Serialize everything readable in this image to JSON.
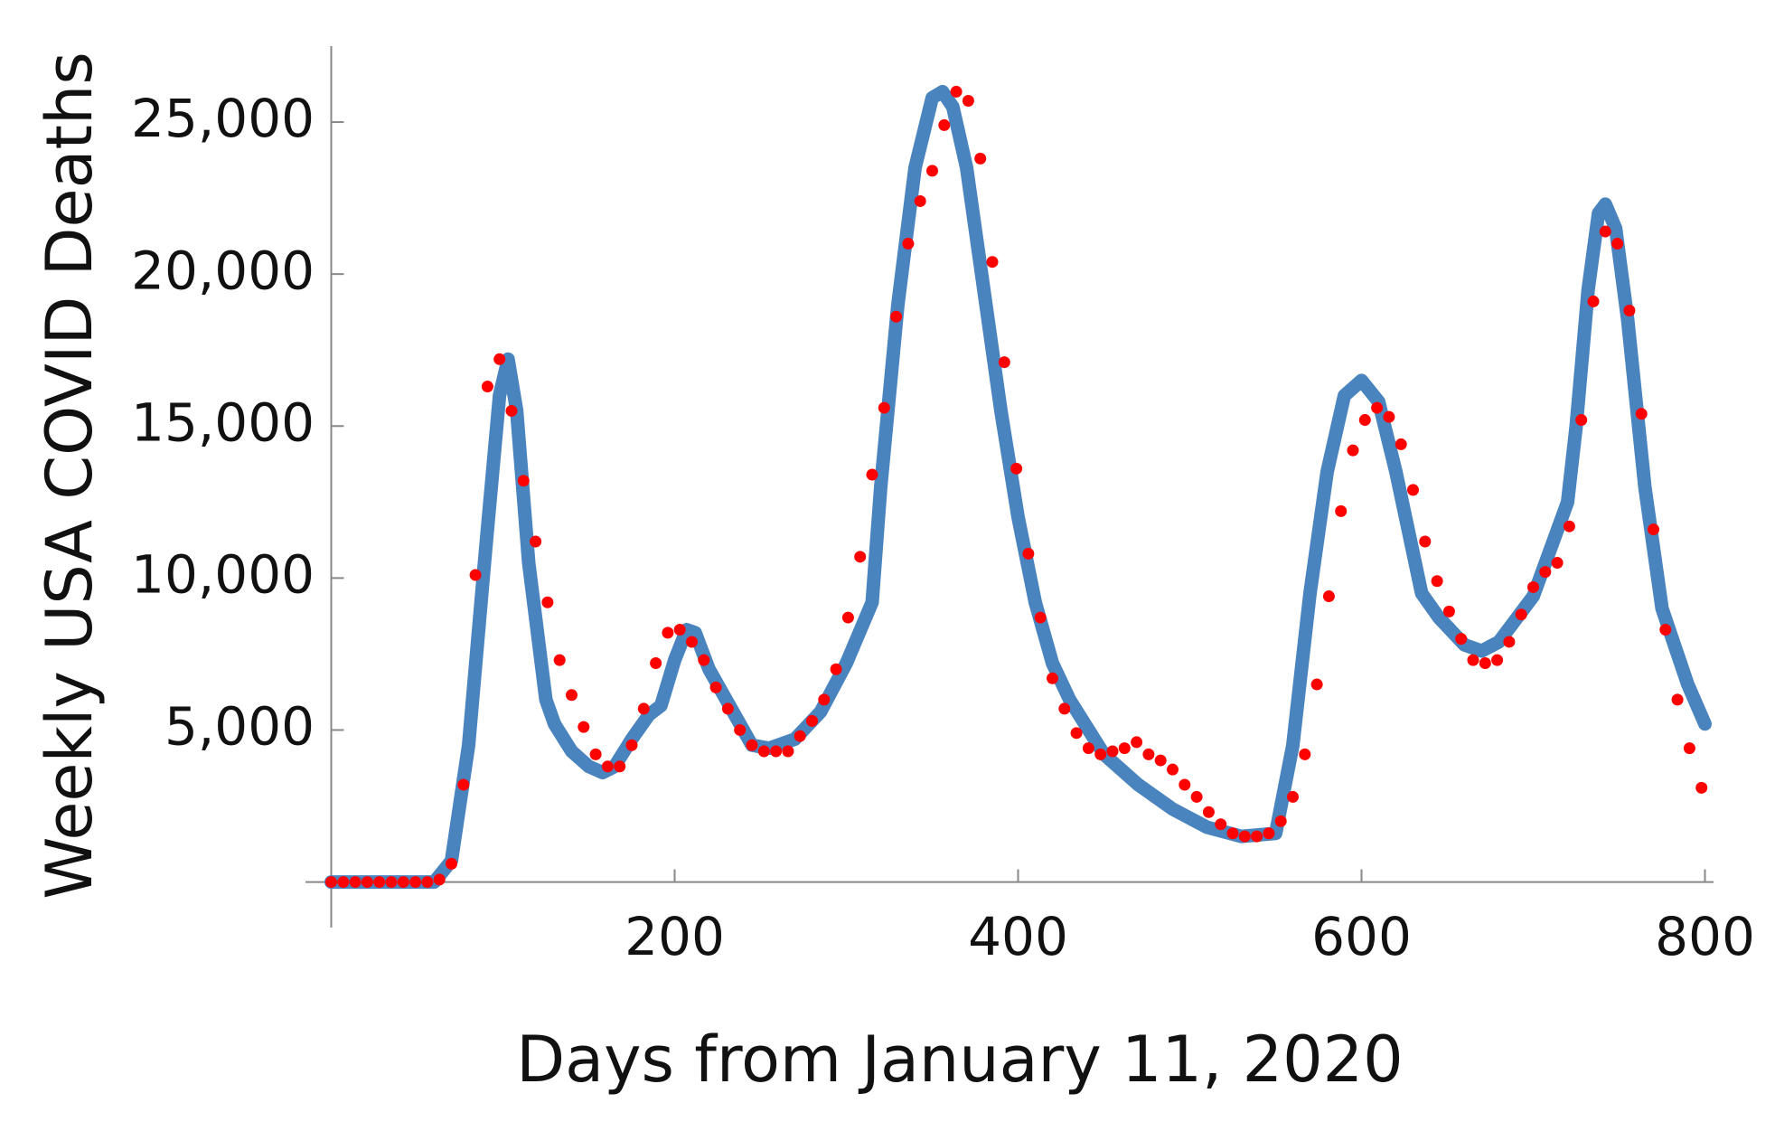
{
  "chart_data": {
    "type": "line",
    "xlabel": "Days from  January 11, 2020",
    "ylabel": "Weekly USA COVID Deaths",
    "xlim": [
      -15,
      805
    ],
    "ylim": [
      -1500,
      27500
    ],
    "xticks": [
      200,
      400,
      600,
      800
    ],
    "yticks": [
      {
        "value": 5000,
        "label": "5,000"
      },
      {
        "value": 10000,
        "label": "10,000"
      },
      {
        "value": 15000,
        "label": "15,000"
      },
      {
        "value": 20000,
        "label": "20,000"
      },
      {
        "value": 25000,
        "label": "25,000"
      }
    ],
    "series": [
      {
        "type": "line",
        "color": "#4a84bf",
        "x": [
          0,
          60,
          70,
          80,
          90,
          98,
          103,
          108,
          115,
          125,
          130,
          140,
          150,
          158,
          165,
          175,
          185,
          192,
          200,
          207,
          212,
          220,
          235,
          245,
          255,
          270,
          285,
          300,
          315,
          320,
          330,
          340,
          350,
          356,
          362,
          370,
          380,
          390,
          400,
          410,
          420,
          430,
          450,
          470,
          490,
          510,
          530,
          550,
          560,
          570,
          580,
          590,
          600,
          610,
          620,
          635,
          645,
          660,
          670,
          680,
          700,
          720,
          725,
          732,
          738,
          742,
          748,
          755,
          765,
          775,
          790,
          800
        ],
        "values": [
          0,
          0,
          700,
          4500,
          11000,
          16000,
          17200,
          15500,
          10500,
          6000,
          5200,
          4300,
          3800,
          3600,
          3800,
          4700,
          5500,
          5800,
          7300,
          8300,
          8200,
          7000,
          5500,
          4500,
          4400,
          4700,
          5600,
          7200,
          9200,
          13000,
          19000,
          23500,
          25800,
          26000,
          25500,
          23500,
          19500,
          15500,
          12000,
          9200,
          7200,
          6000,
          4200,
          3200,
          2400,
          1800,
          1500,
          1600,
          4500,
          9500,
          13500,
          16000,
          16500,
          15800,
          13500,
          9500,
          8700,
          7800,
          7600,
          7900,
          9400,
          12500,
          15000,
          19500,
          22000,
          22300,
          21500,
          18500,
          13000,
          9000,
          6500,
          5200
        ]
      },
      {
        "type": "scatter",
        "color": "#ff0000",
        "x": [
          0,
          7,
          14,
          21,
          28,
          35,
          42,
          49,
          56,
          63,
          70,
          77,
          84,
          91,
          98,
          105,
          112,
          119,
          126,
          133,
          140,
          147,
          154,
          161,
          168,
          175,
          182,
          189,
          196,
          203,
          210,
          217,
          224,
          231,
          238,
          245,
          252,
          259,
          266,
          273,
          280,
          287,
          294,
          301,
          308,
          315,
          322,
          329,
          336,
          343,
          350,
          357,
          364,
          371,
          378,
          385,
          392,
          399,
          406,
          413,
          420,
          427,
          434,
          441,
          448,
          455,
          462,
          469,
          476,
          483,
          490,
          497,
          504,
          511,
          518,
          525,
          532,
          539,
          546,
          553,
          560,
          567,
          574,
          581,
          588,
          595,
          602,
          609,
          616,
          623,
          630,
          637,
          644,
          651,
          658,
          665,
          672,
          679,
          686,
          693,
          700,
          707,
          714,
          721,
          728,
          735,
          742,
          749,
          756,
          763,
          770,
          777,
          784,
          791,
          798
        ],
        "values": [
          0,
          0,
          0,
          0,
          0,
          0,
          0,
          0,
          0,
          80,
          600,
          3200,
          10100,
          16300,
          17200,
          15500,
          13200,
          11200,
          9200,
          7300,
          6150,
          5100,
          4200,
          3800,
          3800,
          4500,
          5700,
          7200,
          8200,
          8300,
          7900,
          7300,
          6400,
          5700,
          5000,
          4500,
          4300,
          4300,
          4300,
          4800,
          5300,
          6000,
          7000,
          8700,
          10700,
          13400,
          15600,
          18600,
          21000,
          22400,
          23400,
          24900,
          26000,
          25700,
          23800,
          20400,
          17100,
          13600,
          10800,
          8700,
          6700,
          5700,
          4900,
          4400,
          4200,
          4300,
          4400,
          4600,
          4200,
          4000,
          3700,
          3200,
          2800,
          2300,
          1900,
          1600,
          1500,
          1500,
          1600,
          2000,
          2800,
          4200,
          6500,
          9400,
          12200,
          14200,
          15200,
          15600,
          15300,
          14400,
          12900,
          11200,
          9900,
          8900,
          8000,
          7300,
          7200,
          7300,
          7900,
          8800,
          9700,
          10200,
          10500,
          11700,
          15200,
          19100,
          21400,
          21000,
          18800,
          15400,
          11600,
          8300,
          6000,
          4400,
          3100
        ]
      }
    ]
  }
}
